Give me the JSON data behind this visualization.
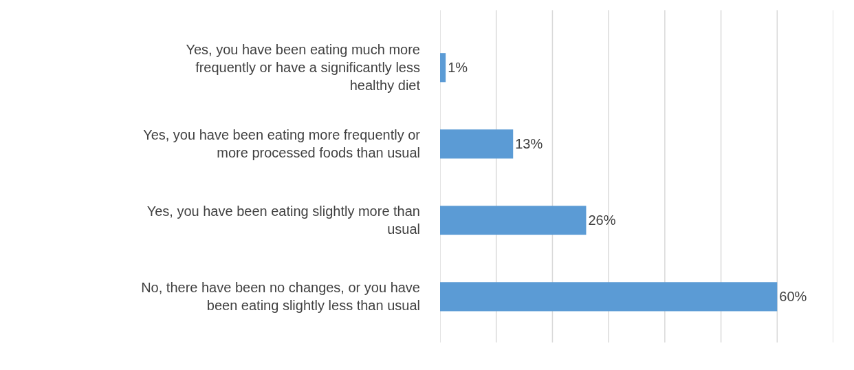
{
  "chart_data": {
    "type": "bar",
    "orientation": "horizontal",
    "categories": [
      "Yes, you have been eating much more frequently or have a significantly less healthy diet",
      "Yes, you have been eating more frequently or more processed foods than usual",
      "Yes, you have been eating slightly more than usual",
      "No, there have been no changes, or you have been eating slightly less than usual"
    ],
    "values": [
      1,
      13,
      26,
      60
    ],
    "value_labels": [
      "1%",
      "13%",
      "26%",
      "60%"
    ],
    "color": "#5b9bd5",
    "xlim": [
      0,
      70
    ],
    "xticks": [
      {
        "value": 0,
        "label": null
      },
      {
        "value": 10,
        "label": null
      },
      {
        "value": 20,
        "label": null
      },
      {
        "value": 30,
        "label": null
      },
      {
        "value": 40,
        "label": null
      },
      {
        "value": 50,
        "label": null
      },
      {
        "value": 60,
        "label": null
      },
      {
        "value": 70,
        "label": null
      }
    ],
    "grid": "x",
    "legend": false
  }
}
